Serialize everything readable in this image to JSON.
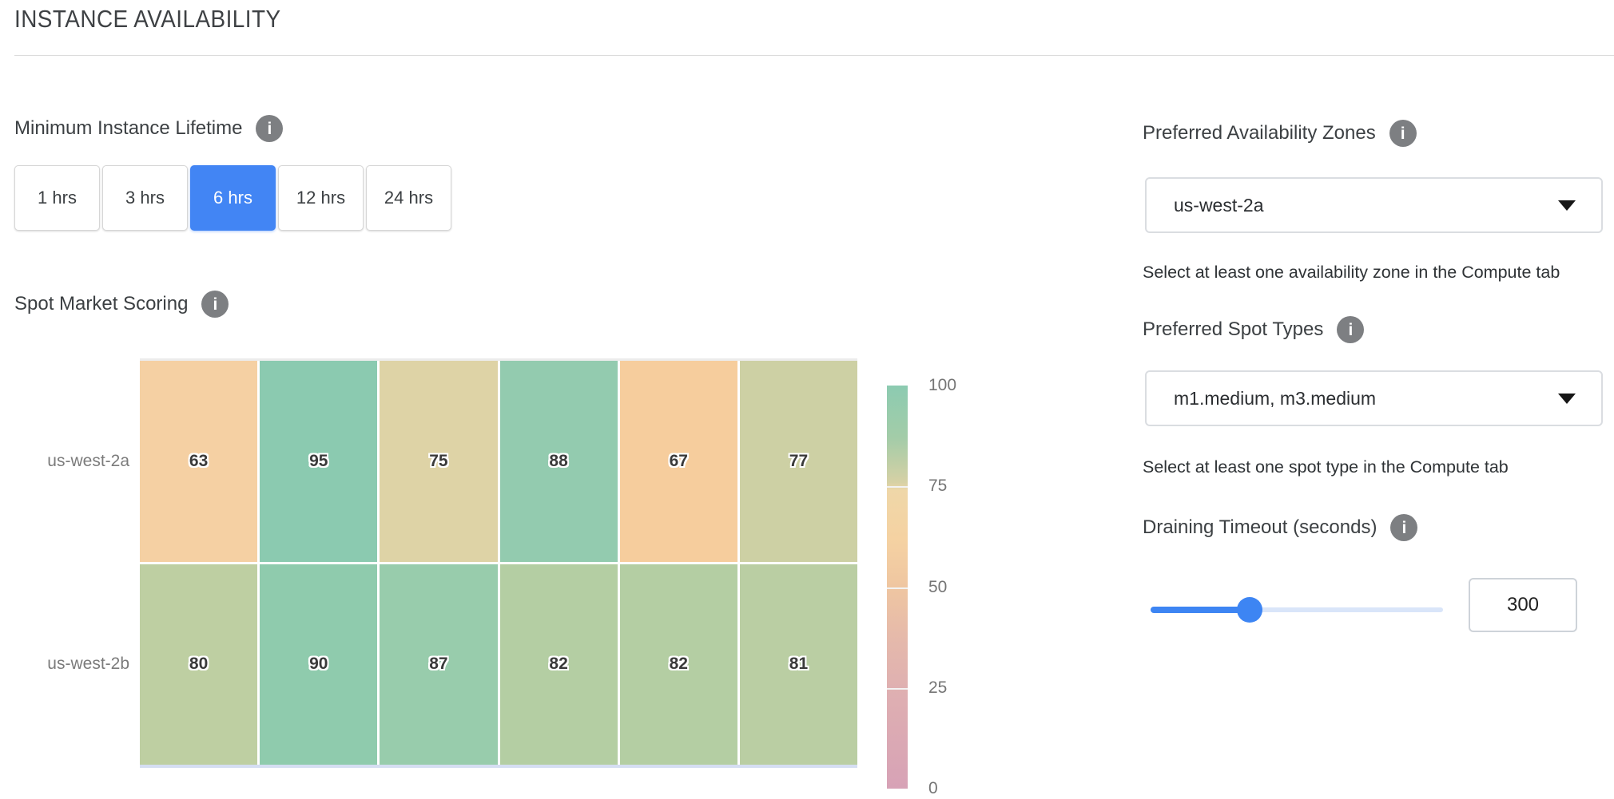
{
  "header": {
    "title": "INSTANCE AVAILABILITY"
  },
  "lifetime": {
    "label": "Minimum Instance Lifetime",
    "selected_color": "#4285f4",
    "options": [
      {
        "label": "1 hrs",
        "selected": false
      },
      {
        "label": "3 hrs",
        "selected": false
      },
      {
        "label": "6 hrs",
        "selected": true
      },
      {
        "label": "12 hrs",
        "selected": false
      },
      {
        "label": "24 hrs",
        "selected": false
      }
    ]
  },
  "scoring": {
    "label": "Spot Market Scoring"
  },
  "chart_data": {
    "type": "heatmap",
    "title": "Spot Market Scoring",
    "y_categories": [
      "us-west-2a",
      "us-west-2b"
    ],
    "columns": 6,
    "series": [
      {
        "name": "us-west-2a",
        "values": [
          63,
          95,
          75,
          88,
          67,
          77
        ],
        "colors": [
          "#f5d0a3",
          "#8bcab0",
          "#ded3a6",
          "#93cbaf",
          "#f6cd9d",
          "#cdd0a4"
        ]
      },
      {
        "name": "us-west-2b",
        "values": [
          80,
          90,
          87,
          82,
          82,
          81
        ],
        "colors": [
          "#becfa2",
          "#8fcbad",
          "#98ccac",
          "#b4cea3",
          "#b4cea3",
          "#bacea3"
        ]
      }
    ],
    "colorbar": {
      "range": [
        0,
        100
      ],
      "ticks": [
        "100",
        "75",
        "50",
        "25",
        "0"
      ],
      "gradient": [
        {
          "pos": 0,
          "color": "#8ccbb1"
        },
        {
          "pos": 13,
          "color": "#a3cca8"
        },
        {
          "pos": 24,
          "color": "#d6d1a5"
        },
        {
          "pos": 26,
          "color": "#efd7a8"
        },
        {
          "pos": 38,
          "color": "#f5d2a2"
        },
        {
          "pos": 50,
          "color": "#efc6a1"
        },
        {
          "pos": 63,
          "color": "#e5b9ab"
        },
        {
          "pos": 75,
          "color": "#dfb0b1"
        },
        {
          "pos": 100,
          "color": "#d7a2b6"
        }
      ]
    }
  },
  "zones": {
    "label": "Preferred Availability Zones",
    "value": "us-west-2a",
    "helper": "Select at least one availability zone in the Compute tab"
  },
  "spot_types": {
    "label": "Preferred Spot Types",
    "value": "m1.medium, m3.medium",
    "helper": "Select at least one spot type in the Compute tab"
  },
  "draining": {
    "label": "Draining Timeout (seconds)",
    "value": "300",
    "slider_percent": 34,
    "slider_color": "#3d85f3",
    "track_color": "#d9e5f9"
  }
}
